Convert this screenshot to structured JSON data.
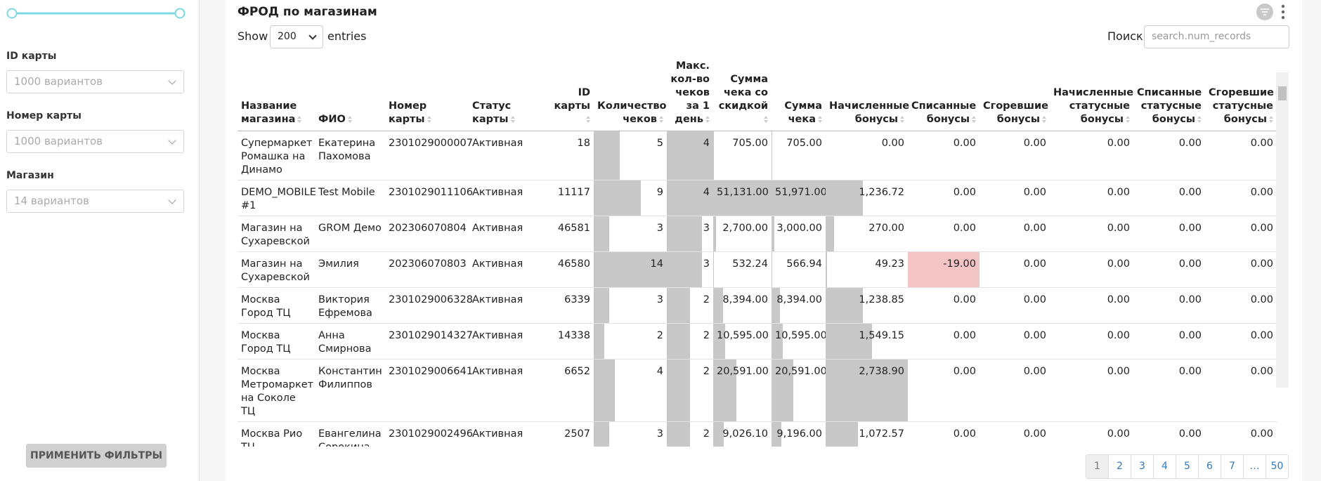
{
  "sidebar": {
    "filters": [
      {
        "label": "ID карты",
        "placeholder": "1000 вариантов"
      },
      {
        "label": "Номер карты",
        "placeholder": "1000 вариантов"
      },
      {
        "label": "Магазин",
        "placeholder": "14 вариантов"
      }
    ],
    "apply_button": "ПРИМЕНИТЬ ФИЛЬТРЫ"
  },
  "panel": {
    "title": "ФРОД по магазинам",
    "show_label": "Show",
    "page_size": "200",
    "entries_label": "entries",
    "search_label": "Поиск",
    "search_placeholder": "search.num_records"
  },
  "table": {
    "columns": [
      "Название магазина",
      "ФИО",
      "Номер карты",
      "Статус карты",
      "ID карты",
      "Количество чеков",
      "Макс. кол-во чеков за 1 день",
      "Сумма чека со скидкой",
      "Сумма чека",
      "Начисленные бонусы",
      "Списанные бонусы",
      "Сгоревшие бонусы",
      "Начисленные статусные бонусы",
      "Списанные статусные бонусы",
      "Сгоревшие статусные бонусы"
    ],
    "rows": [
      [
        "Супермаркет Ромашка на Динамо",
        "Екатерина Пахомова",
        "2301029000007",
        "Активная",
        "18",
        "5",
        "4",
        "705.00",
        "705.00",
        "0.00",
        "0.00",
        "0.00",
        "0.00",
        "0.00",
        "0.00"
      ],
      [
        "DEMO_MOBILE #1",
        "Test Mobile",
        "2301029011106",
        "Активная",
        "11117",
        "9",
        "4",
        "51,131.00",
        "51,971.00",
        "1,236.72",
        "0.00",
        "0.00",
        "0.00",
        "0.00",
        "0.00"
      ],
      [
        "Магазин на Сухаревской",
        "GROM Демо",
        "202306070804",
        "Активная",
        "46581",
        "3",
        "3",
        "2,700.00",
        "3,000.00",
        "270.00",
        "0.00",
        "0.00",
        "0.00",
        "0.00",
        "0.00"
      ],
      [
        "Магазин на Сухаревской",
        "Эмилия",
        "202306070803",
        "Активная",
        "46580",
        "14",
        "3",
        "532.24",
        "566.94",
        "49.23",
        "-19.00",
        "0.00",
        "0.00",
        "0.00",
        "0.00"
      ],
      [
        "Москва Город ТЦ",
        "Виктория Ефремова",
        "2301029006328",
        "Активная",
        "6339",
        "3",
        "2",
        "8,394.00",
        "8,394.00",
        "1,238.85",
        "0.00",
        "0.00",
        "0.00",
        "0.00",
        "0.00"
      ],
      [
        "Москва Город ТЦ",
        "Анна Смирнова",
        "2301029014327",
        "Активная",
        "14338",
        "2",
        "2",
        "10,595.00",
        "10,595.00",
        "1,549.15",
        "0.00",
        "0.00",
        "0.00",
        "0.00",
        "0.00"
      ],
      [
        "Москва Метромаркет на Соколе ТЦ",
        "Константин Филиппов",
        "2301029006641",
        "Активная",
        "6652",
        "4",
        "2",
        "20,591.00",
        "20,591.00",
        "2,738.90",
        "0.00",
        "0.00",
        "0.00",
        "0.00",
        "0.00"
      ],
      [
        "Москва Рио ТЦ",
        "Евангелина Сорокина",
        "2301029002496",
        "Активная",
        "2507",
        "3",
        "2",
        "9,026.10",
        "9,196.00",
        "1,072.57",
        "0.00",
        "0.00",
        "0.00",
        "0.00",
        "0.00"
      ]
    ]
  },
  "pagination": [
    "1",
    "2",
    "3",
    "4",
    "5",
    "6",
    "7",
    "…",
    "50"
  ]
}
